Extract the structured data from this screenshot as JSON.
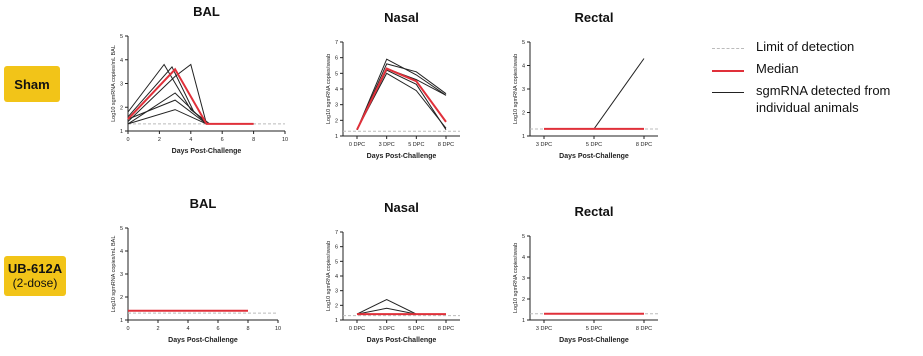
{
  "rows": [
    {
      "label": "Sham",
      "sublabel": ""
    },
    {
      "label": "UB-612A",
      "sublabel": "(2-dose)"
    }
  ],
  "legend": {
    "items": [
      {
        "label": "Limit of detection",
        "color": "#bbbbbb",
        "style": "dashed"
      },
      {
        "label": "Median",
        "color": "#e0303a",
        "style": "solid"
      },
      {
        "label": "sgmRNA detected from individual animals",
        "color": "#222222",
        "style": "solid"
      }
    ]
  },
  "colors": {
    "median": "#e0303a",
    "individual": "#222222",
    "lod": "#bbbbbb",
    "row_label_bg": "#f2c418"
  },
  "chart_data": [
    {
      "panel": "Sham BAL",
      "type": "line",
      "title": "BAL",
      "xlabel": "Days Post-Challenge",
      "ylabel": "Log10 sgmRNA copies/mL BAL",
      "xlim": [
        0,
        10
      ],
      "ylim": [
        1,
        5
      ],
      "xticks": [
        0,
        2,
        4,
        6,
        8,
        10
      ],
      "yticks": [
        1,
        2,
        3,
        4,
        5
      ],
      "lod": 1.3,
      "median": {
        "x": [
          0,
          3,
          5,
          8
        ],
        "y": [
          1.5,
          3.6,
          1.3,
          1.3
        ]
      },
      "series": [
        {
          "x": [
            0,
            2.3,
            4,
            5.2,
            8
          ],
          "y": [
            1.8,
            3.8,
            1.9,
            1.3,
            1.3
          ]
        },
        {
          "x": [
            0,
            2.8,
            4.2,
            5.2
          ],
          "y": [
            1.6,
            3.7,
            1.8,
            1.3
          ]
        },
        {
          "x": [
            0,
            3,
            4,
            5
          ],
          "y": [
            1.4,
            3.3,
            3.8,
            1.3
          ]
        },
        {
          "x": [
            0,
            3,
            5
          ],
          "y": [
            1.3,
            2.6,
            1.3
          ]
        },
        {
          "x": [
            0,
            3,
            5
          ],
          "y": [
            1.5,
            2.3,
            1.3
          ]
        },
        {
          "x": [
            0,
            3,
            5
          ],
          "y": [
            1.3,
            1.9,
            1.3
          ]
        }
      ]
    },
    {
      "panel": "Sham Nasal",
      "type": "line",
      "title": "Nasal",
      "xlabel": "Days Post-Challenge",
      "ylabel": "Log10 sgmRNA copies/swab",
      "categories": [
        "0 DPC",
        "3 DPC",
        "5 DPC",
        "8 DPC"
      ],
      "ylim": [
        1,
        7
      ],
      "yticks": [
        1,
        2,
        3,
        4,
        5,
        6,
        7
      ],
      "lod": 1.3,
      "median": {
        "y": [
          1.4,
          5.3,
          4.5,
          1.9
        ]
      },
      "series": [
        {
          "y": [
            1.4,
            5.9,
            4.9,
            3.6
          ]
        },
        {
          "y": [
            1.4,
            5.6,
            5.1,
            3.7
          ]
        },
        {
          "y": [
            1.4,
            5.3,
            4.6,
            3.6
          ]
        },
        {
          "y": [
            1.4,
            5.2,
            4.3,
            1.4
          ]
        },
        {
          "y": [
            1.4,
            5.0,
            3.9,
            1.5
          ]
        }
      ]
    },
    {
      "panel": "Sham Rectal",
      "type": "line",
      "title": "Rectal",
      "xlabel": "Days Post-Challenge",
      "ylabel": "Log10 sgmRNA copies/swab",
      "categories": [
        "3 DPC",
        "5 DPC",
        "8 DPC"
      ],
      "ylim": [
        1,
        5
      ],
      "yticks": [
        1,
        2,
        3,
        4,
        5
      ],
      "lod": 1.3,
      "median": {
        "y": [
          1.3,
          1.3,
          1.3
        ]
      },
      "series": [
        {
          "y": [
            1.3,
            1.3,
            4.3
          ]
        },
        {
          "y": [
            1.3,
            1.3,
            1.3
          ]
        }
      ]
    },
    {
      "panel": "UB-612A BAL",
      "type": "line",
      "title": "BAL",
      "xlabel": "Days Post-Challenge",
      "ylabel": "Log10 sgmRNA copies/mL BAL",
      "xlim": [
        0,
        10
      ],
      "ylim": [
        1,
        5
      ],
      "xticks": [
        0,
        2,
        4,
        6,
        8,
        10
      ],
      "yticks": [
        1,
        2,
        3,
        4,
        5
      ],
      "lod": 1.3,
      "median": {
        "x": [
          0,
          8
        ],
        "y": [
          1.4,
          1.4
        ]
      },
      "series": [
        {
          "x": [
            0,
            8
          ],
          "y": [
            1.4,
            1.4
          ]
        }
      ]
    },
    {
      "panel": "UB-612A Nasal",
      "type": "line",
      "title": "Nasal",
      "xlabel": "Days Post-Challenge",
      "ylabel": "Log10 sgmRNA copies/swab",
      "categories": [
        "0 DPC",
        "3 DPC",
        "5 DPC",
        "8 DPC"
      ],
      "ylim": [
        1,
        7
      ],
      "yticks": [
        1,
        2,
        3,
        4,
        5,
        6,
        7
      ],
      "lod": 1.3,
      "median": {
        "y": [
          1.4,
          1.4,
          1.4,
          1.4
        ]
      },
      "series": [
        {
          "y": [
            1.4,
            2.4,
            1.4,
            1.4
          ]
        },
        {
          "y": [
            1.4,
            1.8,
            1.4,
            1.4
          ]
        },
        {
          "y": [
            1.4,
            1.4,
            1.4,
            1.4
          ]
        }
      ]
    },
    {
      "panel": "UB-612A Rectal",
      "type": "line",
      "title": "Rectal",
      "xlabel": "Days Post-Challenge",
      "ylabel": "Log10 sgmRNA copies/swab",
      "categories": [
        "3 DPC",
        "5 DPC",
        "8 DPC"
      ],
      "ylim": [
        1,
        5
      ],
      "yticks": [
        1,
        2,
        3,
        4,
        5
      ],
      "lod": 1.3,
      "median": {
        "y": [
          1.3,
          1.3,
          1.3
        ]
      },
      "series": [
        {
          "y": [
            1.3,
            1.3,
            1.3
          ]
        }
      ]
    }
  ]
}
